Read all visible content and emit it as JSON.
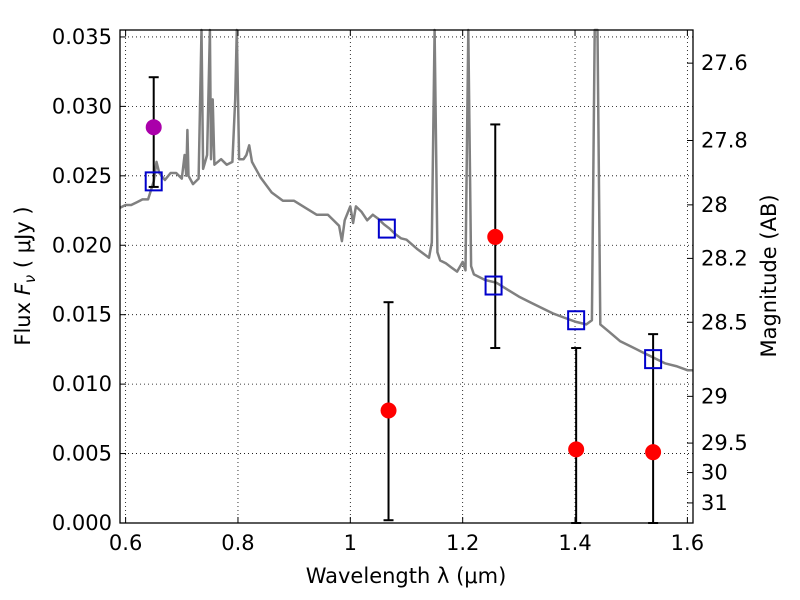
{
  "chart_data": {
    "type": "scatter",
    "xlabel": "Wavelength  λ (μm)",
    "ylabel_left": {
      "prefix": "Flux  ",
      "symbol": "F",
      "subscript": "ν",
      "unit": "  ( μJy )"
    },
    "ylabel_right": "Magnitude (AB)",
    "xlim": [
      0.59,
      1.61
    ],
    "ylim": [
      0.0,
      0.0355
    ],
    "grid": true,
    "x_ticks": [
      {
        "value": 0.6,
        "label": "0.6"
      },
      {
        "value": 0.8,
        "label": "0.8"
      },
      {
        "value": 1.0,
        "label": "1"
      },
      {
        "value": 1.2,
        "label": "1.2"
      },
      {
        "value": 1.4,
        "label": "1.4"
      },
      {
        "value": 1.6,
        "label": "1.6"
      }
    ],
    "y_ticks": [
      {
        "value": 0.0,
        "label": "0.000"
      },
      {
        "value": 0.005,
        "label": "0.005"
      },
      {
        "value": 0.01,
        "label": "0.010"
      },
      {
        "value": 0.015,
        "label": "0.015"
      },
      {
        "value": 0.02,
        "label": "0.020"
      },
      {
        "value": 0.025,
        "label": "0.025"
      },
      {
        "value": 0.03,
        "label": "0.030"
      },
      {
        "value": 0.035,
        "label": "0.035"
      }
    ],
    "right_ticks": [
      {
        "mag": 27.6,
        "label": "27.6"
      },
      {
        "mag": 27.8,
        "label": "27.8"
      },
      {
        "mag": 28.0,
        "label": "28"
      },
      {
        "mag": 28.2,
        "label": "28.2"
      },
      {
        "mag": 28.5,
        "label": "28.5"
      },
      {
        "mag": 29.0,
        "label": "29"
      },
      {
        "mag": 29.5,
        "label": "29.5"
      },
      {
        "mag": 30.0,
        "label": "30"
      },
      {
        "mag": 31.0,
        "label": "31"
      }
    ],
    "model_spectrum": {
      "color": "#808080",
      "points": [
        [
          0.59,
          0.0227
        ],
        [
          0.6,
          0.0229
        ],
        [
          0.61,
          0.0229
        ],
        [
          0.62,
          0.0231
        ],
        [
          0.63,
          0.0233
        ],
        [
          0.64,
          0.0233
        ],
        [
          0.65,
          0.0246
        ],
        [
          0.655,
          0.026
        ],
        [
          0.66,
          0.0252
        ],
        [
          0.67,
          0.0247
        ],
        [
          0.68,
          0.0252
        ],
        [
          0.69,
          0.0252
        ],
        [
          0.7,
          0.0248
        ],
        [
          0.705,
          0.0265
        ],
        [
          0.708,
          0.025
        ],
        [
          0.71,
          0.0283
        ],
        [
          0.712,
          0.025
        ],
        [
          0.72,
          0.0244
        ],
        [
          0.73,
          0.0248
        ],
        [
          0.735,
          0.036
        ],
        [
          0.738,
          0.0255
        ],
        [
          0.745,
          0.0265
        ],
        [
          0.75,
          0.036
        ],
        [
          0.752,
          0.0262
        ],
        [
          0.755,
          0.0305
        ],
        [
          0.758,
          0.0258
        ],
        [
          0.77,
          0.0262
        ],
        [
          0.78,
          0.0258
        ],
        [
          0.79,
          0.026
        ],
        [
          0.795,
          0.0305
        ],
        [
          0.798,
          0.0356
        ],
        [
          0.802,
          0.0262
        ],
        [
          0.81,
          0.0262
        ],
        [
          0.815,
          0.0265
        ],
        [
          0.82,
          0.0272
        ],
        [
          0.825,
          0.026
        ],
        [
          0.84,
          0.0249
        ],
        [
          0.86,
          0.0238
        ],
        [
          0.88,
          0.0232
        ],
        [
          0.9,
          0.0232
        ],
        [
          0.92,
          0.0227
        ],
        [
          0.94,
          0.0222
        ],
        [
          0.96,
          0.0222
        ],
        [
          0.97,
          0.0218
        ],
        [
          0.98,
          0.0214
        ],
        [
          0.985,
          0.0203
        ],
        [
          0.99,
          0.0218
        ],
        [
          1.0,
          0.0228
        ],
        [
          1.005,
          0.0216
        ],
        [
          1.01,
          0.0228
        ],
        [
          1.02,
          0.0224
        ],
        [
          1.03,
          0.0218
        ],
        [
          1.04,
          0.0222
        ],
        [
          1.05,
          0.0219
        ],
        [
          1.06,
          0.0215
        ],
        [
          1.07,
          0.0212
        ],
        [
          1.08,
          0.0208
        ],
        [
          1.09,
          0.0205
        ],
        [
          1.1,
          0.0204
        ],
        [
          1.12,
          0.0197
        ],
        [
          1.14,
          0.0191
        ],
        [
          1.145,
          0.0202
        ],
        [
          1.15,
          0.0355
        ],
        [
          1.155,
          0.0195
        ],
        [
          1.16,
          0.0189
        ],
        [
          1.17,
          0.0187
        ],
        [
          1.18,
          0.0184
        ],
        [
          1.19,
          0.0181
        ],
        [
          1.2,
          0.0188
        ],
        [
          1.205,
          0.0182
        ],
        [
          1.21,
          0.0355
        ],
        [
          1.215,
          0.0185
        ],
        [
          1.22,
          0.0179
        ],
        [
          1.24,
          0.0175
        ],
        [
          1.26,
          0.0173
        ],
        [
          1.28,
          0.0168
        ],
        [
          1.3,
          0.0163
        ],
        [
          1.32,
          0.0159
        ],
        [
          1.34,
          0.0155
        ],
        [
          1.36,
          0.0151
        ],
        [
          1.38,
          0.0148
        ],
        [
          1.4,
          0.0145
        ],
        [
          1.42,
          0.0143
        ],
        [
          1.43,
          0.0146
        ],
        [
          1.435,
          0.0355
        ],
        [
          1.44,
          0.0355
        ],
        [
          1.445,
          0.0143
        ],
        [
          1.46,
          0.0138
        ],
        [
          1.48,
          0.0131
        ],
        [
          1.5,
          0.0127
        ],
        [
          1.52,
          0.0123
        ],
        [
          1.54,
          0.0119
        ],
        [
          1.56,
          0.0115
        ],
        [
          1.58,
          0.0113
        ],
        [
          1.6,
          0.011
        ],
        [
          1.61,
          0.011
        ]
      ]
    },
    "model_photometry": {
      "marker": "open-square",
      "color": "#0000cc",
      "points": [
        {
          "x": 0.65,
          "y": 0.0246
        },
        {
          "x": 1.065,
          "y": 0.0212
        },
        {
          "x": 1.255,
          "y": 0.0171
        },
        {
          "x": 1.402,
          "y": 0.0146
        },
        {
          "x": 1.539,
          "y": 0.0118
        }
      ]
    },
    "observed": [
      {
        "x": 0.65,
        "y": 0.0285,
        "low": 0.0242,
        "high": 0.0321,
        "color": "#aa00aa"
      },
      {
        "x": 1.068,
        "y": 0.0081,
        "low": 0.0002,
        "high": 0.0159,
        "color": "#ff0000"
      },
      {
        "x": 1.258,
        "y": 0.0206,
        "low": 0.0126,
        "high": 0.0287,
        "color": "#ff0000"
      },
      {
        "x": 1.402,
        "y": 0.0053,
        "low": 0.0,
        "high": 0.0126,
        "color": "#ff0000"
      },
      {
        "x": 1.539,
        "y": 0.0051,
        "low": 0.0,
        "high": 0.0136,
        "color": "#ff0000"
      }
    ]
  }
}
